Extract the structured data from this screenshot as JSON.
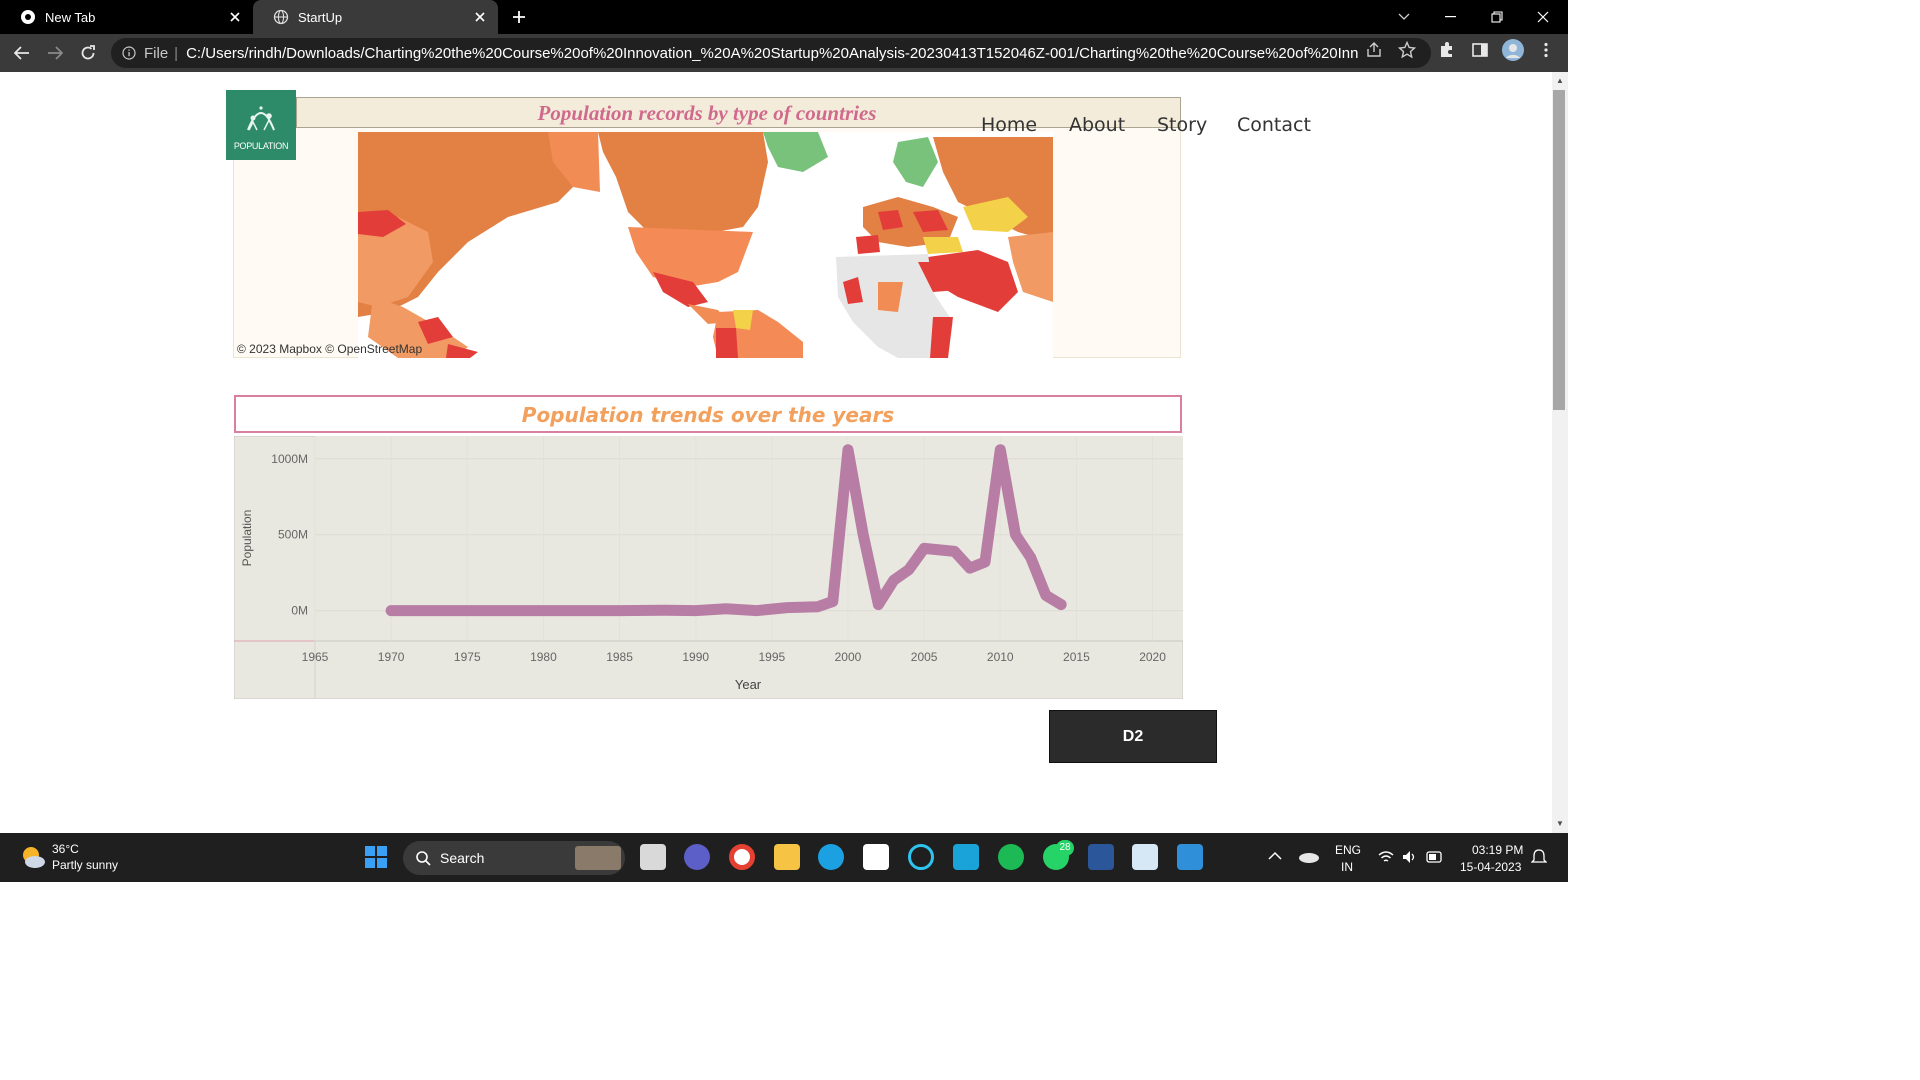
{
  "browser": {
    "tabs": [
      {
        "label": "New Tab"
      },
      {
        "label": "StartUp"
      }
    ],
    "address": {
      "scheme_label": "File",
      "url": "C:/Users/rindh/Downloads/Charting%20the%20Course%20of%20Innovation_%20A%20Startup%20Analysis-20230413T152046Z-001/Charting%20the%20Course%20of%20Innovation_%..."
    }
  },
  "site": {
    "logo_text": "POPULATION",
    "nav": [
      {
        "label": "Home"
      },
      {
        "label": "About"
      },
      {
        "label": "Story"
      },
      {
        "label": "Contact"
      }
    ],
    "map": {
      "title": "Population records by type of countries",
      "attribution": "© 2023 Mapbox  © OpenStreetMap"
    },
    "trend": {
      "title": "Population trends over the years"
    },
    "d2_button": "D2"
  },
  "chart_data": {
    "type": "line",
    "xlabel": "Year",
    "ylabel": "Population",
    "xlim": [
      1965,
      2022
    ],
    "ylim": [
      -200,
      1150
    ],
    "x_ticks": [
      "1965",
      "1970",
      "1975",
      "1980",
      "1985",
      "1990",
      "1995",
      "2000",
      "2005",
      "2010",
      "2015",
      "2020"
    ],
    "y_ticks": [
      "1000M",
      "500M",
      "0M"
    ],
    "y_tick_values": [
      1000,
      500,
      0
    ],
    "unit": "M",
    "line_color": "#b87da4",
    "background": "#e8e8e0",
    "grid": true,
    "series": [
      {
        "x": [
          1970,
          1975,
          1980,
          1985,
          1988,
          1990,
          1992,
          1994,
          1996,
          1998,
          1999,
          2000,
          2001,
          2002,
          2003,
          2004,
          2005,
          2007,
          2008,
          2009,
          2010,
          2011,
          2012,
          2013,
          2014
        ],
        "values": [
          0,
          0,
          0,
          0,
          3,
          0,
          12,
          0,
          20,
          25,
          60,
          1060,
          500,
          40,
          200,
          270,
          410,
          390,
          280,
          320,
          1060,
          500,
          350,
          100,
          40
        ]
      }
    ]
  },
  "taskbar": {
    "weather_temp": "36°C",
    "weather_desc": "Partly sunny",
    "search_label": "Search",
    "whatsapp_badge": "28",
    "lang_line1": "ENG",
    "lang_line2": "IN",
    "time": "03:19 PM",
    "date": "15-04-2023"
  }
}
